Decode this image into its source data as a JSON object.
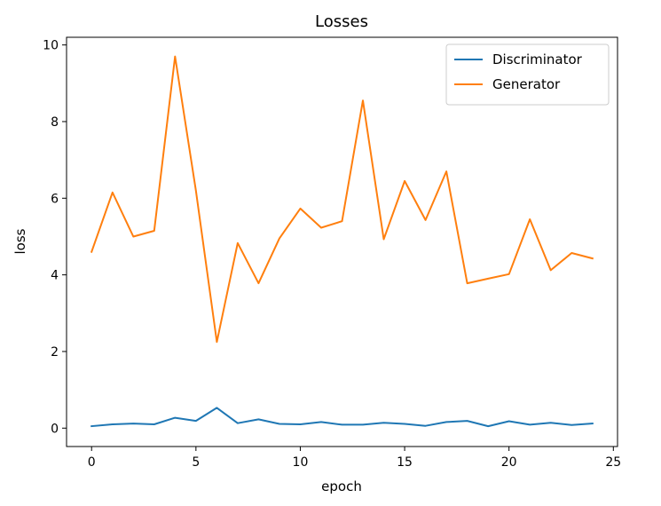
{
  "chart_data": {
    "type": "line",
    "title": "Losses",
    "xlabel": "epoch",
    "ylabel": "loss",
    "xlim": [
      -1.2,
      25.2
    ],
    "ylim": [
      -0.48,
      10.2
    ],
    "xticks": [
      0,
      5,
      10,
      15,
      20,
      25
    ],
    "yticks": [
      0,
      2,
      4,
      6,
      8,
      10
    ],
    "grid": false,
    "legend_position": "top-right",
    "x": [
      0,
      1,
      2,
      3,
      4,
      5,
      6,
      7,
      8,
      9,
      10,
      11,
      12,
      13,
      14,
      15,
      16,
      17,
      18,
      19,
      20,
      21,
      22,
      23,
      24
    ],
    "series": [
      {
        "name": "Discriminator",
        "color": "#1f77b4",
        "values": [
          0.05,
          0.1,
          0.12,
          0.1,
          0.27,
          0.19,
          0.53,
          0.13,
          0.23,
          0.11,
          0.1,
          0.16,
          0.09,
          0.09,
          0.14,
          0.11,
          0.06,
          0.16,
          0.19,
          0.05,
          0.18,
          0.09,
          0.14,
          0.08,
          0.12
        ]
      },
      {
        "name": "Generator",
        "color": "#ff7f0e",
        "values": [
          4.6,
          6.15,
          5.0,
          5.15,
          9.7,
          6.2,
          2.25,
          4.83,
          3.78,
          4.95,
          5.73,
          5.23,
          5.4,
          8.55,
          4.93,
          6.45,
          5.43,
          6.7,
          3.78,
          3.9,
          4.02,
          5.45,
          4.12,
          4.57,
          4.43
        ]
      }
    ]
  }
}
